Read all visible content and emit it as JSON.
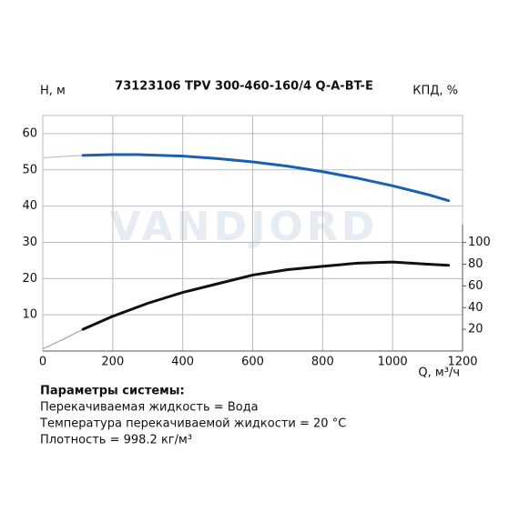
{
  "chart_data": {
    "type": "line",
    "title": "73123106 TPV 300-460-160/4 Q-A-BT-E",
    "ylabel": "H, м",
    "y2label": "КПД, %",
    "xlabel": "Q, м³/ч",
    "watermark": "VANDJORD",
    "xlim": [
      0,
      1200
    ],
    "xticks": [
      0,
      200,
      400,
      600,
      800,
      1000,
      1200
    ],
    "ylim": [
      0,
      65
    ],
    "yticks": [
      10,
      20,
      30,
      40,
      50,
      60
    ],
    "y2lim": [
      0,
      217
    ],
    "y2ticks": [
      20,
      40,
      60,
      80,
      100
    ],
    "grid": true,
    "series": [
      {
        "color": "#aab8cc",
        "width": 1,
        "x": [
          0,
          60,
          115
        ],
        "values": [
          53.3,
          53.7,
          54.0
        ]
      },
      {
        "color": "#1b5fb5",
        "width": 3,
        "x": [
          115,
          200,
          270,
          400,
          500,
          600,
          700,
          800,
          900,
          1000,
          1100,
          1160
        ],
        "values": [
          54.0,
          54.2,
          54.2,
          53.8,
          53.1,
          52.2,
          51.0,
          49.5,
          47.7,
          45.6,
          43.2,
          41.5
        ]
      },
      {
        "color": "#999999",
        "width": 1,
        "axis": "y2",
        "x": [
          0,
          60,
          115
        ],
        "values": [
          2,
          11,
          20
        ]
      },
      {
        "color": "#111111",
        "width": 3,
        "axis": "y2",
        "x": [
          115,
          200,
          300,
          400,
          500,
          600,
          700,
          800,
          900,
          1000,
          1100,
          1160
        ],
        "values": [
          20,
          32,
          44,
          54,
          62,
          70,
          75,
          78,
          81,
          82,
          80,
          79
        ]
      }
    ]
  },
  "parameters": {
    "heading": "Параметры системы:",
    "lines": [
      "Перекачиваемая жидкость = Вода",
      "Температура перекачиваемой жидкости = 20 °C",
      "Плотность = 998.2 кг/м³"
    ]
  }
}
